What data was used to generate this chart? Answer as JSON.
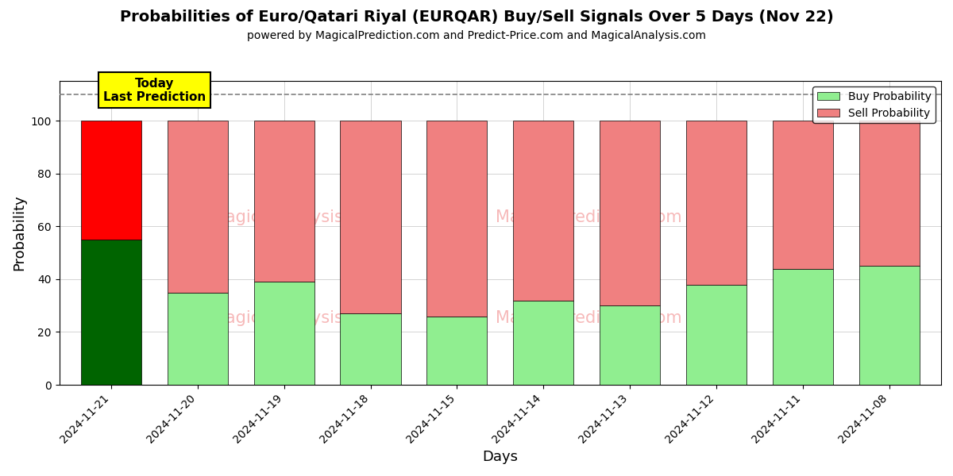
{
  "title": "Probabilities of Euro/Qatari Riyal (EURQAR) Buy/Sell Signals Over 5 Days (Nov 22)",
  "subtitle": "powered by MagicalPrediction.com and Predict-Price.com and MagicalAnalysis.com",
  "xlabel": "Days",
  "ylabel": "Probability",
  "categories": [
    "2024-11-21",
    "2024-11-20",
    "2024-11-19",
    "2024-11-18",
    "2024-11-15",
    "2024-11-14",
    "2024-11-13",
    "2024-11-12",
    "2024-11-11",
    "2024-11-08"
  ],
  "buy_values": [
    55,
    35,
    39,
    27,
    26,
    32,
    30,
    38,
    44,
    45
  ],
  "sell_values": [
    45,
    65,
    61,
    73,
    74,
    68,
    70,
    62,
    56,
    55
  ],
  "today_buy_color": "#006400",
  "today_sell_color": "#ff0000",
  "buy_color": "#90EE90",
  "sell_color": "#F08080",
  "today_annotation": "Today\nLast Prediction",
  "annotation_bg_color": "#FFFF00",
  "dashed_line_y": 110,
  "ylim": [
    0,
    115
  ],
  "yticks": [
    0,
    20,
    40,
    60,
    80,
    100
  ],
  "watermark_color": "#F08080",
  "legend_buy_label": "Buy Probability",
  "legend_sell_label": "Sell Probability",
  "bar_width": 0.7,
  "figsize": [
    12,
    6
  ],
  "dpi": 100
}
